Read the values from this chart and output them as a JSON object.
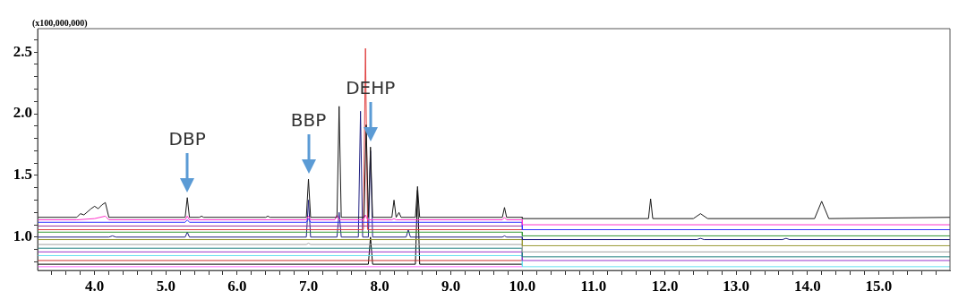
{
  "chart_data": {
    "type": "line",
    "ylabel": "(x100,000,000)",
    "xlim": [
      3.2,
      16.0
    ],
    "ylim": [
      0.73,
      2.69
    ],
    "xticks": [
      {
        "value": 3.4,
        "label": null
      },
      {
        "value": 3.6,
        "label": null
      },
      {
        "value": 3.8,
        "label": null
      },
      {
        "value": 4,
        "label": "4.0"
      },
      {
        "value": 4.2,
        "label": null
      },
      {
        "value": 4.4,
        "label": null
      },
      {
        "value": 4.6,
        "label": null
      },
      {
        "value": 4.8,
        "label": null
      },
      {
        "value": 5,
        "label": "5.0"
      },
      {
        "value": 5.2,
        "label": null
      },
      {
        "value": 5.4,
        "label": null
      },
      {
        "value": 5.6,
        "label": null
      },
      {
        "value": 5.8,
        "label": null
      },
      {
        "value": 6,
        "label": "6.0"
      },
      {
        "value": 6.2,
        "label": null
      },
      {
        "value": 6.4,
        "label": null
      },
      {
        "value": 6.6,
        "label": null
      },
      {
        "value": 6.8,
        "label": null
      },
      {
        "value": 7,
        "label": "7.0"
      },
      {
        "value": 7.2,
        "label": null
      },
      {
        "value": 7.4,
        "label": null
      },
      {
        "value": 7.6,
        "label": null
      },
      {
        "value": 7.8,
        "label": null
      },
      {
        "value": 8,
        "label": "8.0"
      },
      {
        "value": 8.2,
        "label": null
      },
      {
        "value": 8.4,
        "label": null
      },
      {
        "value": 8.6,
        "label": null
      },
      {
        "value": 8.8,
        "label": null
      },
      {
        "value": 9,
        "label": "9.0"
      },
      {
        "value": 9.2,
        "label": null
      },
      {
        "value": 9.4,
        "label": null
      },
      {
        "value": 9.6,
        "label": null
      },
      {
        "value": 9.8,
        "label": null
      },
      {
        "value": 10,
        "label": "10.0"
      },
      {
        "value": 10.2,
        "label": null
      },
      {
        "value": 10.4,
        "label": null
      },
      {
        "value": 10.6,
        "label": null
      },
      {
        "value": 10.8,
        "label": null
      },
      {
        "value": 11,
        "label": "11.0"
      },
      {
        "value": 11.2,
        "label": null
      },
      {
        "value": 11.4,
        "label": null
      },
      {
        "value": 11.6,
        "label": null
      },
      {
        "value": 11.8,
        "label": null
      },
      {
        "value": 12,
        "label": "12.0"
      },
      {
        "value": 12.2,
        "label": null
      },
      {
        "value": 12.4,
        "label": null
      },
      {
        "value": 12.6,
        "label": null
      },
      {
        "value": 12.8,
        "label": null
      },
      {
        "value": 13,
        "label": "13.0"
      },
      {
        "value": 13.2,
        "label": null
      },
      {
        "value": 13.4,
        "label": null
      },
      {
        "value": 13.6,
        "label": null
      },
      {
        "value": 13.8,
        "label": null
      },
      {
        "value": 14,
        "label": "14.0"
      },
      {
        "value": 14.2,
        "label": null
      },
      {
        "value": 14.4,
        "label": null
      },
      {
        "value": 14.6,
        "label": null
      },
      {
        "value": 14.8,
        "label": null
      },
      {
        "value": 15,
        "label": "15.0"
      },
      {
        "value": 15.2,
        "label": null
      },
      {
        "value": 15.4,
        "label": null
      },
      {
        "value": 15.6,
        "label": null
      },
      {
        "value": 15.8,
        "label": null
      }
    ],
    "yticks": [
      {
        "value": 0.8,
        "label": null
      },
      {
        "value": 0.9,
        "label": null
      },
      {
        "value": 1,
        "label": "1.0"
      },
      {
        "value": 1.1,
        "label": null
      },
      {
        "value": 1.2,
        "label": null
      },
      {
        "value": 1.3,
        "label": null
      },
      {
        "value": 1.4,
        "label": null
      },
      {
        "value": 1.5,
        "label": "1.5"
      },
      {
        "value": 1.6,
        "label": null
      },
      {
        "value": 1.7,
        "label": null
      },
      {
        "value": 1.8,
        "label": null
      },
      {
        "value": 1.9,
        "label": null
      },
      {
        "value": 2,
        "label": "2.0"
      },
      {
        "value": 2.1,
        "label": null
      },
      {
        "value": 2.2,
        "label": null
      },
      {
        "value": 2.3,
        "label": null
      },
      {
        "value": 2.4,
        "label": null
      },
      {
        "value": 2.5,
        "label": "2.5"
      },
      {
        "value": 2.6,
        "label": null
      }
    ],
    "grid": false,
    "legend": false,
    "marker": "none",
    "line_style": "solid",
    "annotations": [
      {
        "text": "DBP",
        "x": 5.3,
        "y": 1.32
      },
      {
        "text": "BBP",
        "x": 7.0,
        "y": 1.47
      },
      {
        "text": "DEHP",
        "x": 7.87,
        "y": 1.73
      }
    ],
    "series": [
      {
        "color": "#1a1a1a",
        "x": [
          3.2,
          3.75,
          3.8,
          3.85,
          3.95,
          4.0,
          4.05,
          4.1,
          4.15,
          4.2,
          5.27,
          5.3,
          5.33,
          5.47,
          5.5,
          5.53,
          6.4,
          6.43,
          6.46,
          6.97,
          7.0,
          7.03,
          7.4,
          7.43,
          7.46,
          7.78,
          7.81,
          7.84,
          7.87,
          7.9,
          8.17,
          8.2,
          8.23,
          8.27,
          8.3,
          8.5,
          8.53,
          8.56,
          9.72,
          9.75,
          9.78,
          10.0,
          10.0,
          11.77,
          11.8,
          11.83,
          12.4,
          12.5,
          12.6,
          14.1,
          14.2,
          14.3,
          16.0
        ],
        "values": [
          1.16,
          1.16,
          1.19,
          1.18,
          1.23,
          1.25,
          1.23,
          1.26,
          1.28,
          1.16,
          1.16,
          1.32,
          1.16,
          1.16,
          1.17,
          1.16,
          1.16,
          1.17,
          1.16,
          1.16,
          1.47,
          1.16,
          1.16,
          2.06,
          1.16,
          1.16,
          1.91,
          1.16,
          1.73,
          1.16,
          1.16,
          1.3,
          1.16,
          1.2,
          1.16,
          1.16,
          1.41,
          1.16,
          1.16,
          1.24,
          1.16,
          1.16,
          1.15,
          1.15,
          1.31,
          1.15,
          1.15,
          1.19,
          1.15,
          1.15,
          1.29,
          1.15,
          1.16
        ]
      },
      {
        "color": "#ff33cc",
        "x": [
          3.2,
          3.75,
          4.0,
          4.15,
          4.2,
          5.27,
          5.3,
          5.33,
          6.97,
          7.0,
          7.03,
          7.37,
          7.4,
          7.43,
          7.77,
          7.8,
          7.83,
          8.17,
          8.2,
          8.23,
          9.72,
          9.75,
          9.78,
          10.0,
          10.0,
          16.0
        ],
        "values": [
          1.14,
          1.14,
          1.15,
          1.17,
          1.14,
          1.14,
          1.17,
          1.14,
          1.14,
          1.17,
          1.14,
          1.14,
          1.18,
          1.14,
          1.14,
          1.18,
          1.14,
          1.14,
          1.15,
          1.14,
          1.14,
          1.16,
          1.14,
          1.14,
          1.1,
          1.1
        ]
      },
      {
        "color": "#3333ff",
        "x": [
          3.2,
          5.27,
          5.3,
          5.33,
          6.97,
          7.0,
          7.03,
          10.0,
          10.0,
          16.0
        ],
        "values": [
          1.12,
          1.12,
          1.14,
          1.12,
          1.12,
          1.15,
          1.12,
          1.12,
          1.06,
          1.06
        ]
      },
      {
        "color": "#993399",
        "x": [
          3.2,
          10.0
        ],
        "values": [
          1.09,
          1.09
        ]
      },
      {
        "color": "#e04040",
        "x": [
          3.2,
          7.77,
          7.8,
          7.83,
          10.0
        ],
        "values": [
          1.06,
          1.06,
          2.53,
          1.06,
          1.06
        ]
      },
      {
        "color": "#339933",
        "x": [
          3.2,
          10.0,
          10.0,
          16.0
        ],
        "values": [
          1.04,
          1.04,
          1.01,
          1.01
        ]
      },
      {
        "color": "#202080",
        "x": [
          3.2,
          4.2,
          4.25,
          4.3,
          5.27,
          5.3,
          5.33,
          6.97,
          7.0,
          7.03,
          7.4,
          7.43,
          7.46,
          7.7,
          7.73,
          7.76,
          7.84,
          7.87,
          7.9,
          8.37,
          8.4,
          8.43,
          9.72,
          9.75,
          9.78,
          10.0,
          10.0,
          12.45,
          12.5,
          12.55,
          13.65,
          13.7,
          13.75,
          16.0
        ],
        "values": [
          1.0,
          1.0,
          1.01,
          1.0,
          1.0,
          1.04,
          1.0,
          1.0,
          1.3,
          1.0,
          1.0,
          1.2,
          1.0,
          1.0,
          2.02,
          1.0,
          1.0,
          1.7,
          1.0,
          1.0,
          1.06,
          1.0,
          1.0,
          1.01,
          1.0,
          1.0,
          0.98,
          0.98,
          0.99,
          0.98,
          0.98,
          0.99,
          0.98,
          0.98
        ]
      },
      {
        "color": "#999933",
        "x": [
          3.2,
          10.0,
          10.0,
          16.0
        ],
        "values": [
          0.98,
          0.98,
          0.93,
          0.93
        ]
      },
      {
        "color": "#a0a0a0",
        "x": [
          3.2,
          6.97,
          7.0,
          7.03,
          10.0,
          10.0,
          16.0
        ],
        "values": [
          0.94,
          0.94,
          0.95,
          0.94,
          0.94,
          0.88,
          0.88
        ]
      },
      {
        "color": "#208080",
        "x": [
          3.2,
          10.0,
          10.0,
          16.0
        ],
        "values": [
          0.91,
          0.91,
          0.84,
          0.84
        ]
      },
      {
        "color": "#9933cc",
        "x": [
          3.2,
          10.0,
          10.0,
          16.0
        ],
        "values": [
          0.88,
          0.88,
          0.81,
          0.81
        ]
      },
      {
        "color": "#66e0f0",
        "x": [
          3.2,
          10.0,
          10.0,
          16.0
        ],
        "values": [
          0.85,
          0.85,
          0.76,
          0.76
        ]
      },
      {
        "color": "#d03030",
        "x": [
          3.2,
          10.0
        ],
        "values": [
          0.81,
          0.81
        ]
      },
      {
        "color": "#000000",
        "x": [
          3.2,
          7.84,
          7.87,
          7.9,
          8.5,
          8.53,
          8.56,
          10.0
        ],
        "values": [
          0.78,
          0.78,
          1.0,
          0.78,
          0.78,
          1.38,
          0.78,
          0.78
        ]
      },
      {
        "color": "#ff66ff",
        "x": [
          3.2,
          10.0
        ],
        "values": [
          0.76,
          0.76
        ]
      }
    ]
  }
}
